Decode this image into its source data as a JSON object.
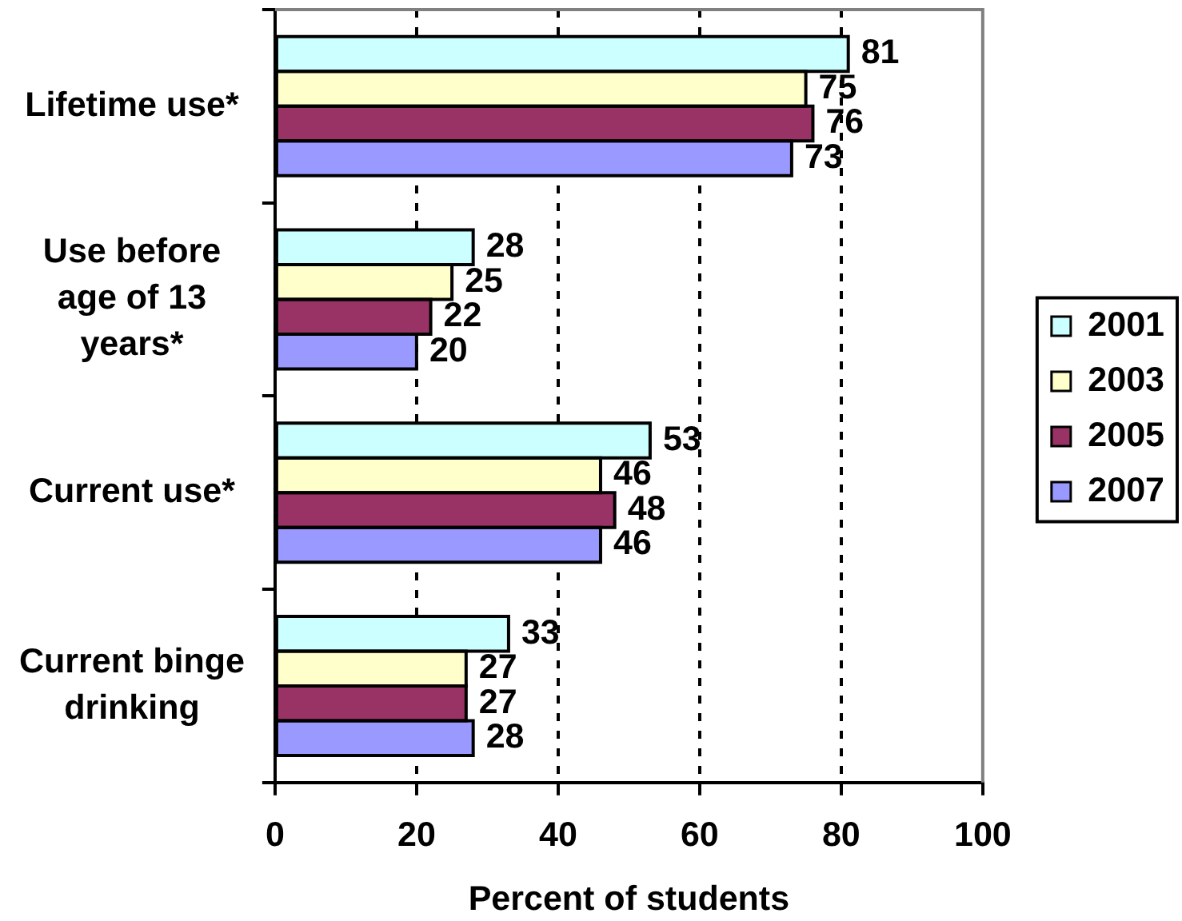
{
  "chart_data": {
    "type": "bar",
    "orientation": "horizontal",
    "categories": [
      "Lifetime use*",
      "Use before age of 13 years*",
      "Current use*",
      "Current binge drinking"
    ],
    "series": [
      {
        "name": "2001",
        "color": "#ccffff",
        "values": [
          81,
          28,
          53,
          33
        ]
      },
      {
        "name": "2003",
        "color": "#ffffcc",
        "values": [
          75,
          25,
          46,
          27
        ]
      },
      {
        "name": "2005",
        "color": "#993366",
        "values": [
          76,
          22,
          48,
          27
        ]
      },
      {
        "name": "2007",
        "color": "#9999ff",
        "values": [
          73,
          20,
          46,
          28
        ]
      }
    ],
    "xlabel": "Percent of students",
    "xlim": [
      0,
      100
    ],
    "xticks": [
      0,
      20,
      40,
      60,
      80,
      100
    ],
    "grid": "x",
    "legend": "right",
    "data_labels": true
  }
}
